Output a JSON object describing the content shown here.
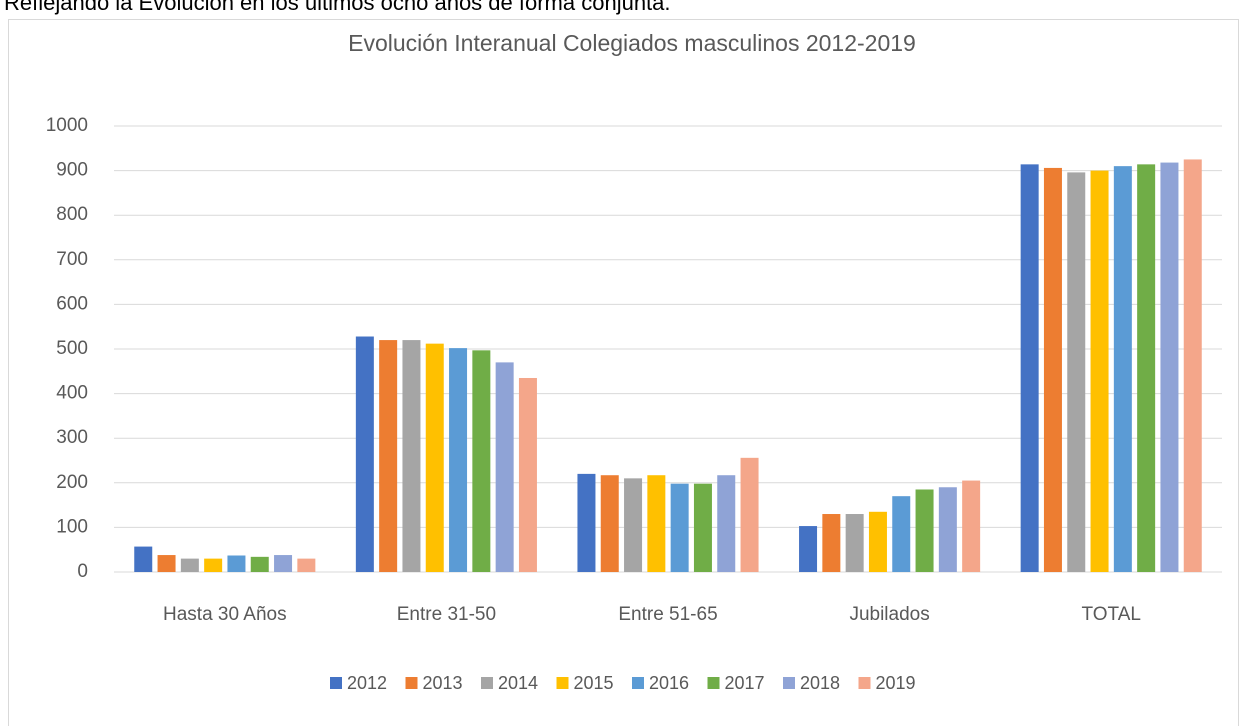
{
  "chart_data": {
    "type": "bar",
    "caption": "Reflejando la Evolución en los últimos ocho años de forma conjunta.",
    "title": "Evolución Interanual Colegiados masculinos 2012-2019",
    "categories": [
      "Hasta 30 Años",
      "Entre 31-50",
      "Entre 51-65",
      "Jubilados",
      "TOTAL"
    ],
    "series": [
      {
        "name": "2012",
        "color": "#4472c4",
        "values": [
          57,
          528,
          220,
          103,
          914
        ]
      },
      {
        "name": "2013",
        "color": "#ed7d31",
        "values": [
          38,
          520,
          217,
          130,
          906
        ]
      },
      {
        "name": "2014",
        "color": "#a5a5a5",
        "values": [
          30,
          520,
          210,
          130,
          896
        ]
      },
      {
        "name": "2015",
        "color": "#ffc000",
        "values": [
          30,
          512,
          217,
          135,
          900
        ]
      },
      {
        "name": "2016",
        "color": "#5b9bd5",
        "values": [
          37,
          502,
          198,
          170,
          910
        ]
      },
      {
        "name": "2017",
        "color": "#70ad47",
        "values": [
          34,
          497,
          198,
          185,
          914
        ]
      },
      {
        "name": "2018",
        "color": "#8fa3d6",
        "values": [
          38,
          470,
          217,
          190,
          918
        ]
      },
      {
        "name": "2019",
        "color": "#f4a68a",
        "values": [
          30,
          435,
          256,
          205,
          925
        ]
      }
    ],
    "ylim": [
      0,
      1000
    ],
    "yticks": [
      0,
      100,
      200,
      300,
      400,
      500,
      600,
      700,
      800,
      900,
      1000
    ],
    "grid": true,
    "legend": "bottom"
  }
}
